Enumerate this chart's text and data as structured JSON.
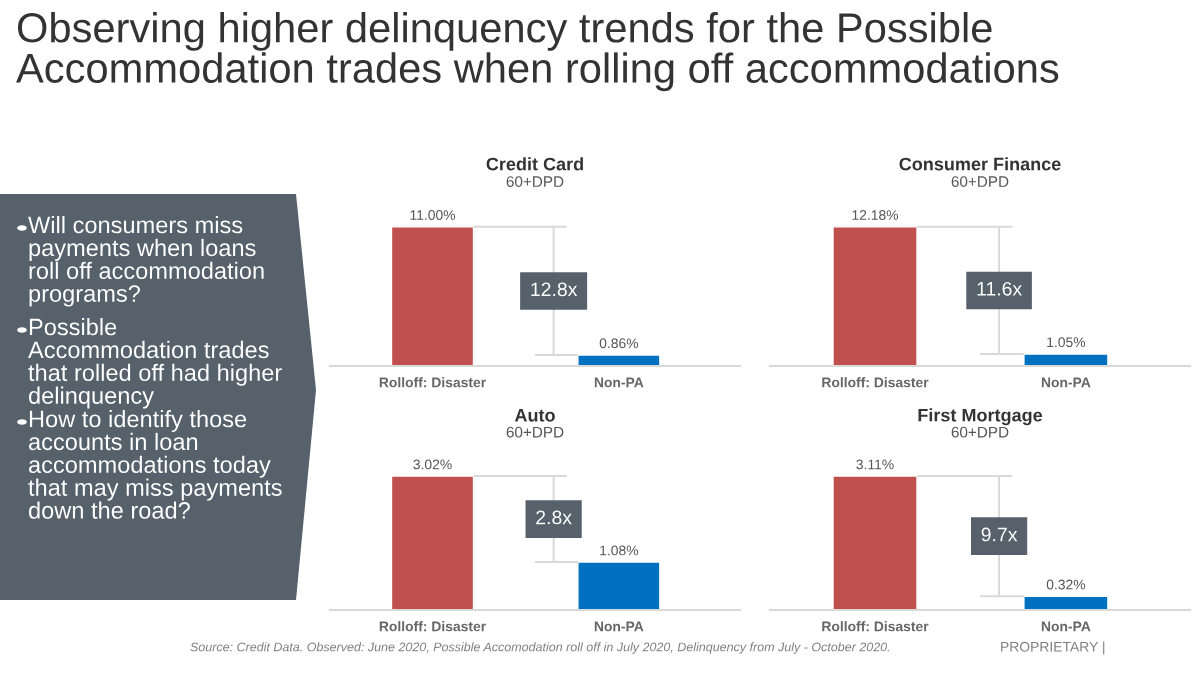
{
  "chart_data": [
    {
      "type": "other",
      "title": "Observing higher delinquency trends for the Possible Accommodation trades when rolling off accommodations",
      "annotations": [
        "Will consumers miss payments when loans roll off accommodation programs?",
        "Possible Accommodation trades that rolled off had higher delinquency",
        "How to identify those accounts in loan accommodations today that may miss payments down the road?"
      ]
    },
    {
      "type": "bar",
      "title": "Credit Card",
      "subtitle": "60+DPD",
      "categories": [
        "Rolloff: Disaster",
        "Non-PA"
      ],
      "values": [
        11.0,
        0.86
      ],
      "colors": [
        "#c0504d",
        "#0070c0"
      ],
      "value_labels": [
        "11.00%",
        "0.86%"
      ],
      "annotations": [
        "12.8x"
      ]
    },
    {
      "type": "bar",
      "title": "Consumer Finance",
      "subtitle": "60+DPD",
      "categories": [
        "Rolloff: Disaster",
        "Non-PA"
      ],
      "values": [
        12.18,
        1.05
      ],
      "colors": [
        "#c0504d",
        "#0070c0"
      ],
      "value_labels": [
        "12.18%",
        "1.05%"
      ],
      "annotations": [
        "11.6x"
      ]
    },
    {
      "type": "bar",
      "title": "Auto",
      "subtitle": "60+DPD",
      "categories": [
        "Rolloff: Disaster",
        "Non-PA"
      ],
      "values": [
        3.02,
        1.08
      ],
      "colors": [
        "#c0504d",
        "#0070c0"
      ],
      "value_labels": [
        "3.02%",
        "1.08%"
      ],
      "annotations": [
        "2.8x"
      ]
    },
    {
      "type": "bar",
      "title": "First Mortgage",
      "subtitle": "60+DPD",
      "categories": [
        "Rolloff: Disaster",
        "Non-PA"
      ],
      "values": [
        3.11,
        0.32
      ],
      "colors": [
        "#c0504d",
        "#0070c0"
      ],
      "value_labels": [
        "3.11%",
        "0.32%"
      ],
      "annotations": [
        "9.7x"
      ]
    },
    {
      "type": "other",
      "annotations": [
        "Source: Credit Data. Observed: June 2020, Possible Accomodation roll off in July 2020, Delinquency from July - October 2020.",
        "PROPRIETARY |"
      ]
    }
  ]
}
